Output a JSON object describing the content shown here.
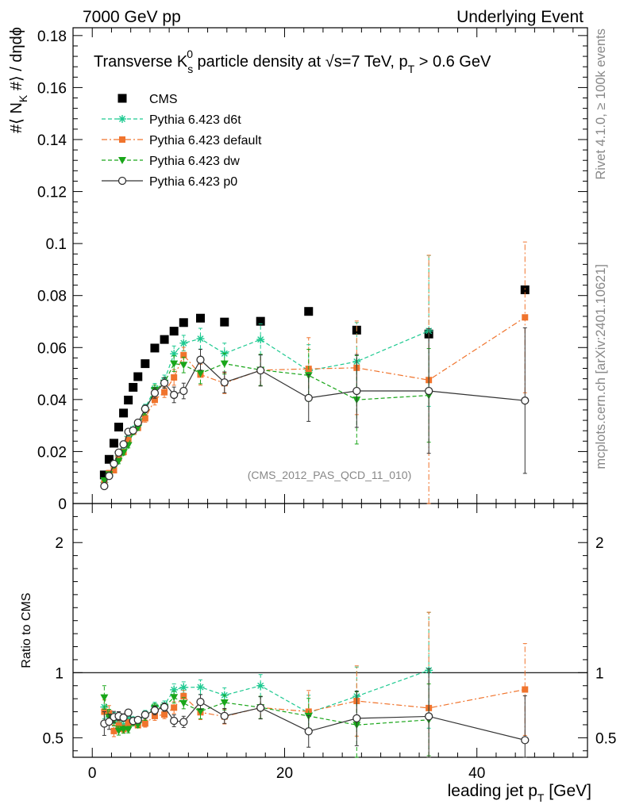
{
  "header": {
    "left": "7000 GeV pp",
    "right": "Underlying Event"
  },
  "side_labels": {
    "rivet": "Rivet 4.1.0, ≥ 100k events",
    "mcplots": "mcplots.cern.ch [arXiv:2401.10621]"
  },
  "colors": {
    "cms": "#000000",
    "d6t": "#1dc990",
    "default": "#f0742d",
    "dw": "#1aa61a",
    "p0": "#333333"
  },
  "chart_data": [
    {
      "type": "scatter",
      "title_parts": {
        "pre": "Transverse K",
        "sub": "s",
        "sup": "0",
        "mid": " particle density at ",
        "sqrt": "√",
        "sqrt_arg": "s=7 TeV, p",
        "pt_sub": "T",
        "post": " > 0.6 GeV"
      },
      "ylabel_parts": {
        "pre": "#⟨ N",
        "sub": "K",
        "post": " #⟩ / dηdϕ"
      },
      "annotation": "(CMS_2012_PAS_QCD_11_010)",
      "xlim": [
        -2,
        51.5
      ],
      "ylim": [
        0,
        0.183
      ],
      "yticks": [
        0,
        0.02,
        0.04,
        0.06,
        0.08,
        0.1,
        0.12,
        0.14,
        0.16,
        0.18
      ],
      "ytick_labels": [
        "0",
        "0.02",
        "0.04",
        "0.06",
        "0.08",
        "0.1",
        "0.12",
        "0.14",
        "0.16",
        "0.18"
      ],
      "legend_position": "top-left",
      "series": [
        {
          "name": "CMS",
          "key": "cms",
          "marker": "square",
          "x": [
            1.25,
            1.75,
            2.25,
            2.75,
            3.25,
            3.75,
            4.25,
            4.75,
            5.5,
            6.5,
            7.5,
            8.5,
            9.5,
            11.25,
            13.75,
            17.5,
            22.5,
            27.5,
            35,
            45
          ],
          "y": [
            0.011,
            0.017,
            0.0232,
            0.0294,
            0.0348,
            0.0398,
            0.0447,
            0.0488,
            0.0538,
            0.0598,
            0.0631,
            0.0663,
            0.0696,
            0.0713,
            0.0698,
            0.0701,
            0.0739,
            0.0667,
            0.0652,
            0.0822
          ],
          "err": []
        },
        {
          "name": "Pythia 6.423 d6t",
          "key": "d6t",
          "marker": "star",
          "dash": "5,3",
          "x": [
            1.25,
            1.75,
            2.25,
            2.75,
            3.25,
            3.75,
            4.25,
            4.75,
            5.5,
            6.5,
            7.5,
            8.5,
            9.5,
            11.25,
            13.75,
            17.5,
            22.5,
            27.5,
            35
          ],
          "y": [
            0.0081,
            0.0112,
            0.0151,
            0.0183,
            0.0209,
            0.0258,
            0.0285,
            0.0301,
            0.0367,
            0.0442,
            0.0474,
            0.0576,
            0.0617,
            0.0634,
            0.0577,
            0.0631,
            0.0511,
            0.0546,
            0.0664
          ],
          "err": [
            0.001,
            0.001,
            0.001,
            0.001,
            0.001,
            0.001,
            0.001,
            0.001,
            0.0015,
            0.002,
            0.002,
            0.003,
            0.003,
            0.004,
            0.004,
            0.006,
            0.01,
            0.015,
            0.029
          ]
        },
        {
          "name": "Pythia 6.423 default",
          "key": "default",
          "marker": "square-small",
          "dash": "7,3,2,3",
          "x": [
            1.25,
            1.75,
            2.25,
            2.75,
            3.25,
            3.75,
            4.25,
            4.75,
            5.5,
            6.5,
            7.5,
            8.5,
            9.5,
            11.25,
            13.75,
            17.5,
            22.5,
            27.5,
            35,
            45
          ],
          "y": [
            0.0077,
            0.0117,
            0.0128,
            0.0175,
            0.0198,
            0.0245,
            0.0276,
            0.0291,
            0.0328,
            0.0399,
            0.0428,
            0.0485,
            0.0571,
            0.0496,
            0.0463,
            0.0513,
            0.0518,
            0.0522,
            0.0475,
            0.0716
          ],
          "err": [
            0.001,
            0.001,
            0.001,
            0.001,
            0.001,
            0.001,
            0.001,
            0.001,
            0.0015,
            0.002,
            0.002,
            0.003,
            0.003,
            0.004,
            0.004,
            0.006,
            0.012,
            0.018,
            0.048,
            0.029
          ]
        },
        {
          "name": "Pythia 6.423 dw",
          "key": "dw",
          "marker": "triangle-down",
          "dash": "5,3",
          "x": [
            1.25,
            1.75,
            2.25,
            2.75,
            3.25,
            3.75,
            4.25,
            4.75,
            5.5,
            6.5,
            7.5,
            8.5,
            9.5,
            11.25,
            13.75,
            17.5,
            22.5,
            27.5,
            35
          ],
          "y": [
            0.0089,
            0.0112,
            0.0147,
            0.0163,
            0.0196,
            0.0224,
            0.0275,
            0.0292,
            0.0356,
            0.0436,
            0.0464,
            0.0538,
            0.0533,
            0.0501,
            0.0538,
            0.0514,
            0.0493,
            0.0399,
            0.0416
          ],
          "err": [
            0.001,
            0.001,
            0.001,
            0.001,
            0.001,
            0.001,
            0.001,
            0.001,
            0.0015,
            0.002,
            0.002,
            0.003,
            0.003,
            0.004,
            0.004,
            0.006,
            0.01,
            0.017,
            0.018
          ]
        },
        {
          "name": "Pythia 6.423 p0",
          "key": "p0",
          "marker": "circle-open",
          "dash": "",
          "x": [
            1.25,
            1.75,
            2.25,
            2.75,
            3.25,
            3.75,
            4.25,
            4.75,
            5.5,
            6.5,
            7.5,
            8.5,
            9.5,
            11.25,
            13.75,
            17.5,
            22.5,
            27.5,
            35,
            45
          ],
          "y": [
            0.0067,
            0.0106,
            0.0153,
            0.0196,
            0.0228,
            0.0276,
            0.0281,
            0.0311,
            0.0364,
            0.0425,
            0.0464,
            0.0418,
            0.0433,
            0.0553,
            0.0466,
            0.0512,
            0.0406,
            0.0433,
            0.0433,
            0.0396
          ],
          "err": [
            0.001,
            0.001,
            0.001,
            0.001,
            0.001,
            0.001,
            0.001,
            0.001,
            0.0015,
            0.002,
            0.002,
            0.003,
            0.003,
            0.004,
            0.004,
            0.006,
            0.009,
            0.014,
            0.024,
            0.028
          ]
        }
      ]
    },
    {
      "type": "scatter",
      "role": "ratio",
      "ylabel": "Ratio to CMS",
      "xlabel_parts": {
        "pre": "leading jet p",
        "sub": "T",
        "post": " [GeV]"
      },
      "xlim": [
        -2,
        51.5
      ],
      "ylim": [
        0.35,
        2.3
      ],
      "yticks": [
        0.5,
        1,
        2
      ],
      "ytick_labels": [
        "0.5",
        "1",
        "2"
      ],
      "xticks": [
        0,
        20,
        40
      ],
      "xtick_labels": [
        "0",
        "20",
        "40"
      ],
      "reference_line": 1
    }
  ]
}
